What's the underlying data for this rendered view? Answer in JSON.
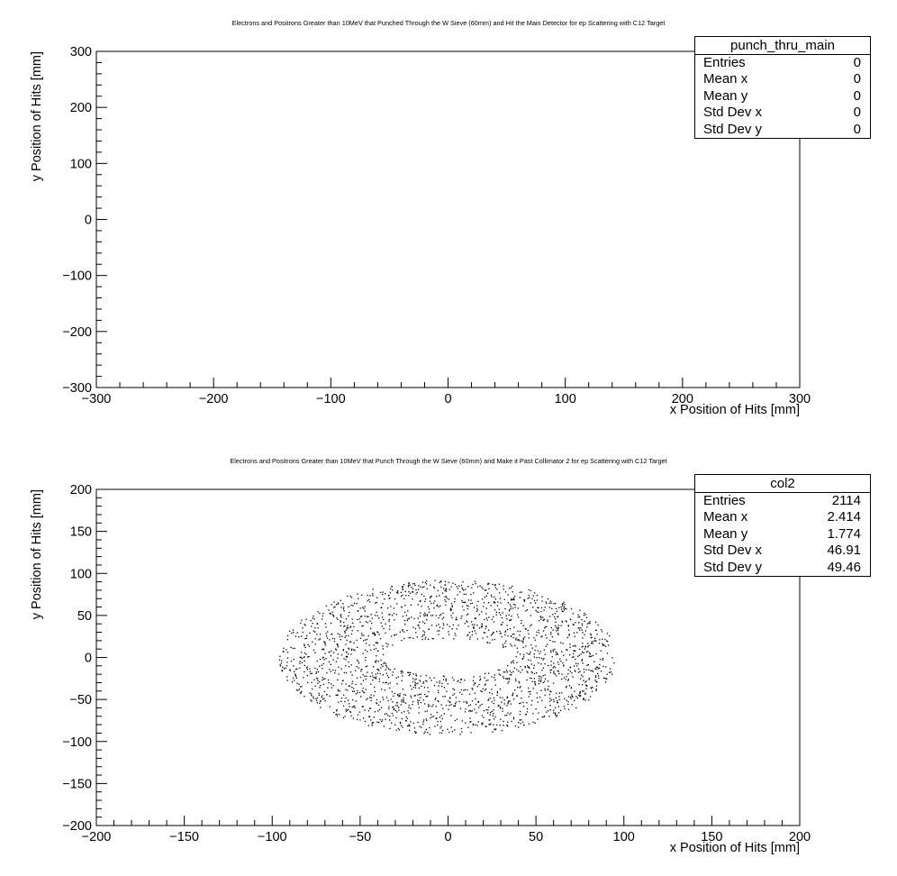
{
  "chart_data": [
    {
      "type": "scatter",
      "title": "Electrons and Positrons Greater than 10MeV that Punched Through the W Sieve (60mm) and Hit the Main Detector for ep Scattering with C12 Target",
      "xlabel": "x Position of Hits [mm]",
      "ylabel": "y Position of Hits [mm]",
      "xlim": [
        -300,
        300
      ],
      "ylim": [
        -300,
        300
      ],
      "xticks": [
        "−300",
        "−200",
        "−100",
        "0",
        "100",
        "200",
        "300"
      ],
      "yticks": [
        "−300",
        "−200",
        "−100",
        "0",
        "100",
        "200",
        "300"
      ],
      "points": [],
      "stats": {
        "name": "punch_thru_main",
        "rows": [
          {
            "label": "Entries",
            "value": "0"
          },
          {
            "label": "Mean x",
            "value": "0"
          },
          {
            "label": "Mean y",
            "value": "0"
          },
          {
            "label": "Std Dev x",
            "value": "0"
          },
          {
            "label": "Std Dev y",
            "value": "0"
          }
        ]
      }
    },
    {
      "type": "scatter",
      "title": "Electrons and Positrons Greater than 10MeV that Punch Through the W Sieve (60mm) and Make it Past Collimator 2 for ep Scattering with C12 Target",
      "xlabel": "x Position of Hits [mm]",
      "ylabel": "y Position of Hits [mm]",
      "xlim": [
        -200,
        200
      ],
      "ylim": [
        -200,
        200
      ],
      "xticks": [
        "−200",
        "−150",
        "−100",
        "−50",
        "0",
        "50",
        "100",
        "150",
        "200"
      ],
      "yticks": [
        "−200",
        "−150",
        "−100",
        "−50",
        "0",
        "50",
        "100",
        "150",
        "200"
      ],
      "distribution": {
        "shape": "elliptical annulus",
        "center": [
          2.4,
          1.8
        ],
        "inner_radius": [
          37,
          22
        ],
        "outer_radius": [
          96,
          92
        ],
        "entries": 2114
      },
      "stats": {
        "name": "col2",
        "rows": [
          {
            "label": "Entries",
            "value": "2114"
          },
          {
            "label": "Mean x",
            "value": "2.414"
          },
          {
            "label": "Mean y",
            "value": "1.774"
          },
          {
            "label": "Std Dev x",
            "value": "46.91"
          },
          {
            "label": "Std Dev y",
            "value": "49.46"
          }
        ]
      }
    }
  ]
}
